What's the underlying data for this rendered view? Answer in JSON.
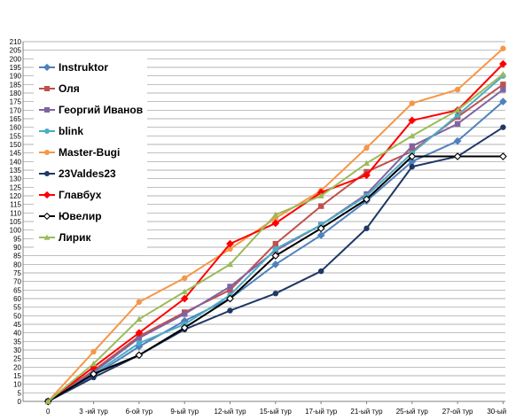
{
  "chart_data": {
    "type": "line",
    "categories": [
      "0",
      "3 -ий тур",
      "6-ой тур",
      "9-ый тур",
      "12-ый тур",
      "15-ый тур",
      "17-ый тур",
      "21-ый тур",
      "25-ый тур",
      "27-ой тур",
      "30-ый тур"
    ],
    "ylim": [
      0,
      210
    ],
    "ytick_step": 5,
    "grid": true,
    "legend_position": "top-left",
    "series": [
      {
        "name": "Instruktor",
        "color": "#4f81bd",
        "marker": "diamond",
        "values": [
          0,
          15,
          32,
          47,
          60,
          80,
          97,
          117,
          140,
          152,
          175
        ]
      },
      {
        "name": "Оля",
        "color": "#c0504d",
        "marker": "square",
        "values": [
          0,
          18,
          38,
          52,
          65,
          92,
          114,
          134,
          146,
          166,
          185
        ]
      },
      {
        "name": "Георгий Иванов",
        "color": "#8064a2",
        "marker": "square",
        "values": [
          0,
          17,
          37,
          51,
          67,
          88,
          103,
          121,
          149,
          162,
          182
        ]
      },
      {
        "name": "blink",
        "color": "#4bacc6",
        "marker": "circle",
        "values": [
          0,
          16,
          34,
          45,
          62,
          89,
          103,
          120,
          145,
          167,
          190
        ]
      },
      {
        "name": "Master-Bugi",
        "color": "#f79646",
        "marker": "circle",
        "values": [
          0,
          29,
          58,
          72,
          89,
          107,
          123,
          148,
          174,
          182,
          206
        ]
      },
      {
        "name": "23Valdes23",
        "color": "#1f3864",
        "marker": "circle",
        "values": [
          0,
          14,
          27,
          42,
          53,
          63,
          76,
          101,
          137,
          143,
          160
        ]
      },
      {
        "name": "Главбух",
        "color": "#ff0000",
        "marker": "diamond",
        "values": [
          0,
          20,
          40,
          60,
          92,
          104,
          122,
          132,
          164,
          170,
          197
        ]
      },
      {
        "name": "Ювелир",
        "color": "#000000",
        "marker": "diamond-open",
        "values": [
          0,
          16,
          27,
          43,
          60,
          85,
          101,
          118,
          143,
          143,
          143
        ]
      },
      {
        "name": "Лирик",
        "color": "#9bbb59",
        "marker": "triangle",
        "values": [
          0,
          22,
          48,
          64,
          80,
          109,
          120,
          139,
          155,
          170,
          191
        ]
      }
    ]
  }
}
